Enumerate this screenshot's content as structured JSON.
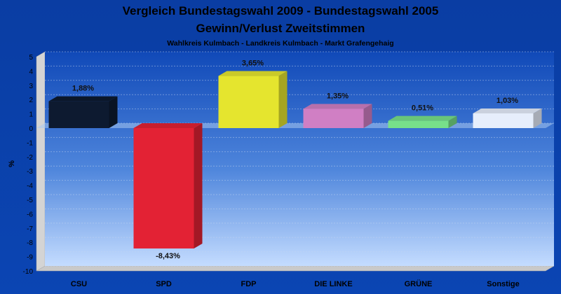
{
  "chart_data": {
    "type": "bar",
    "title": "Vergleich Bundestagswahl 2009 - Bundestagswahl 2005",
    "title2": "Gewinn/Verlust Zweitstimmen",
    "subtitle": "Wahlkreis Kulmbach - Landkreis Kulmbach - Markt Grafengehaig",
    "ylabel": "%",
    "xlabel": "",
    "ylim": [
      -10,
      5
    ],
    "ticks": [
      "5",
      "4",
      "3",
      "2",
      "1",
      "0",
      "-1",
      "-2",
      "-3",
      "-4",
      "-5",
      "-6",
      "-7",
      "-8",
      "-9",
      "-10"
    ],
    "grid": true,
    "categories": [
      "CSU",
      "SPD",
      "FDP",
      "DIE LINKE",
      "GRÜNE",
      "Sonstige"
    ],
    "values": [
      1.88,
      -8.43,
      3.65,
      1.35,
      0.51,
      1.03
    ],
    "labels": [
      "1,88%",
      "-8,43%",
      "3,65%",
      "1,35%",
      "0,51%",
      "1,03%"
    ],
    "colors": [
      "#0d1a30",
      "#e32234",
      "#e5e52e",
      "#d07fc4",
      "#77e08a",
      "#e6eefc"
    ]
  }
}
